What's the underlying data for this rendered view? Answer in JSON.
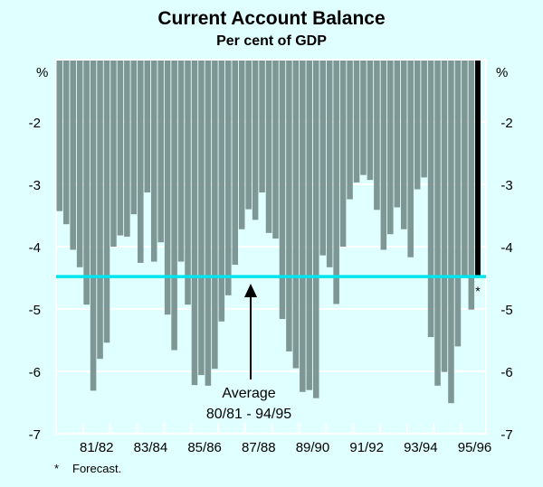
{
  "chart_data": {
    "type": "bar",
    "title": "Current Account Balance",
    "subtitle": "Per cent of GDP",
    "ylabel_left": "%",
    "ylabel_right": "%",
    "ylim": [
      -7,
      -1
    ],
    "yticks": [
      -2,
      -3,
      -4,
      -5,
      -6,
      -7
    ],
    "x_tick_labels": [
      "81/82",
      "83/84",
      "85/86",
      "87/88",
      "89/90",
      "91/92",
      "93/94",
      "95/96"
    ],
    "grid": true,
    "series": [
      {
        "frequency": "quarterly",
        "color": "#7f9794",
        "values": [
          -3.43,
          -3.64,
          -4.05,
          -4.33,
          -4.93,
          -6.31,
          -5.8,
          -5.54,
          -4.0,
          -3.82,
          -3.84,
          -3.48,
          -4.26,
          -3.13,
          -4.24,
          -3.93,
          -5.09,
          -5.66,
          -4.24,
          -4.93,
          -6.22,
          -6.06,
          -6.23,
          -5.96,
          -5.2,
          -4.78,
          -4.29,
          -3.72,
          -3.4,
          -3.57,
          -3.13,
          -3.78,
          -3.87,
          -5.16,
          -5.68,
          -5.95,
          -6.33,
          -6.3,
          -6.43,
          -4.14,
          -4.33,
          -4.92,
          -4.0,
          -3.24,
          -2.97,
          -2.85,
          -2.93,
          -3.41,
          -4.05,
          -3.8,
          -3.37,
          -3.72,
          -4.17,
          -3.08,
          -2.89,
          -5.45,
          -6.23,
          -6.01,
          -6.51,
          -5.6,
          -4.46,
          -5.01
        ]
      },
      {
        "name": "Forecast",
        "color": "#000000",
        "values": [
          -4.49
        ]
      }
    ],
    "average": {
      "value": -4.48,
      "color": "#00e5ee",
      "label_line1": "Average",
      "label_line2": "80/81 - 94/95"
    },
    "forecast_marker": "*",
    "footnote": {
      "marker": "*",
      "text": "Forecast."
    },
    "background_color": "#e0ffff"
  }
}
